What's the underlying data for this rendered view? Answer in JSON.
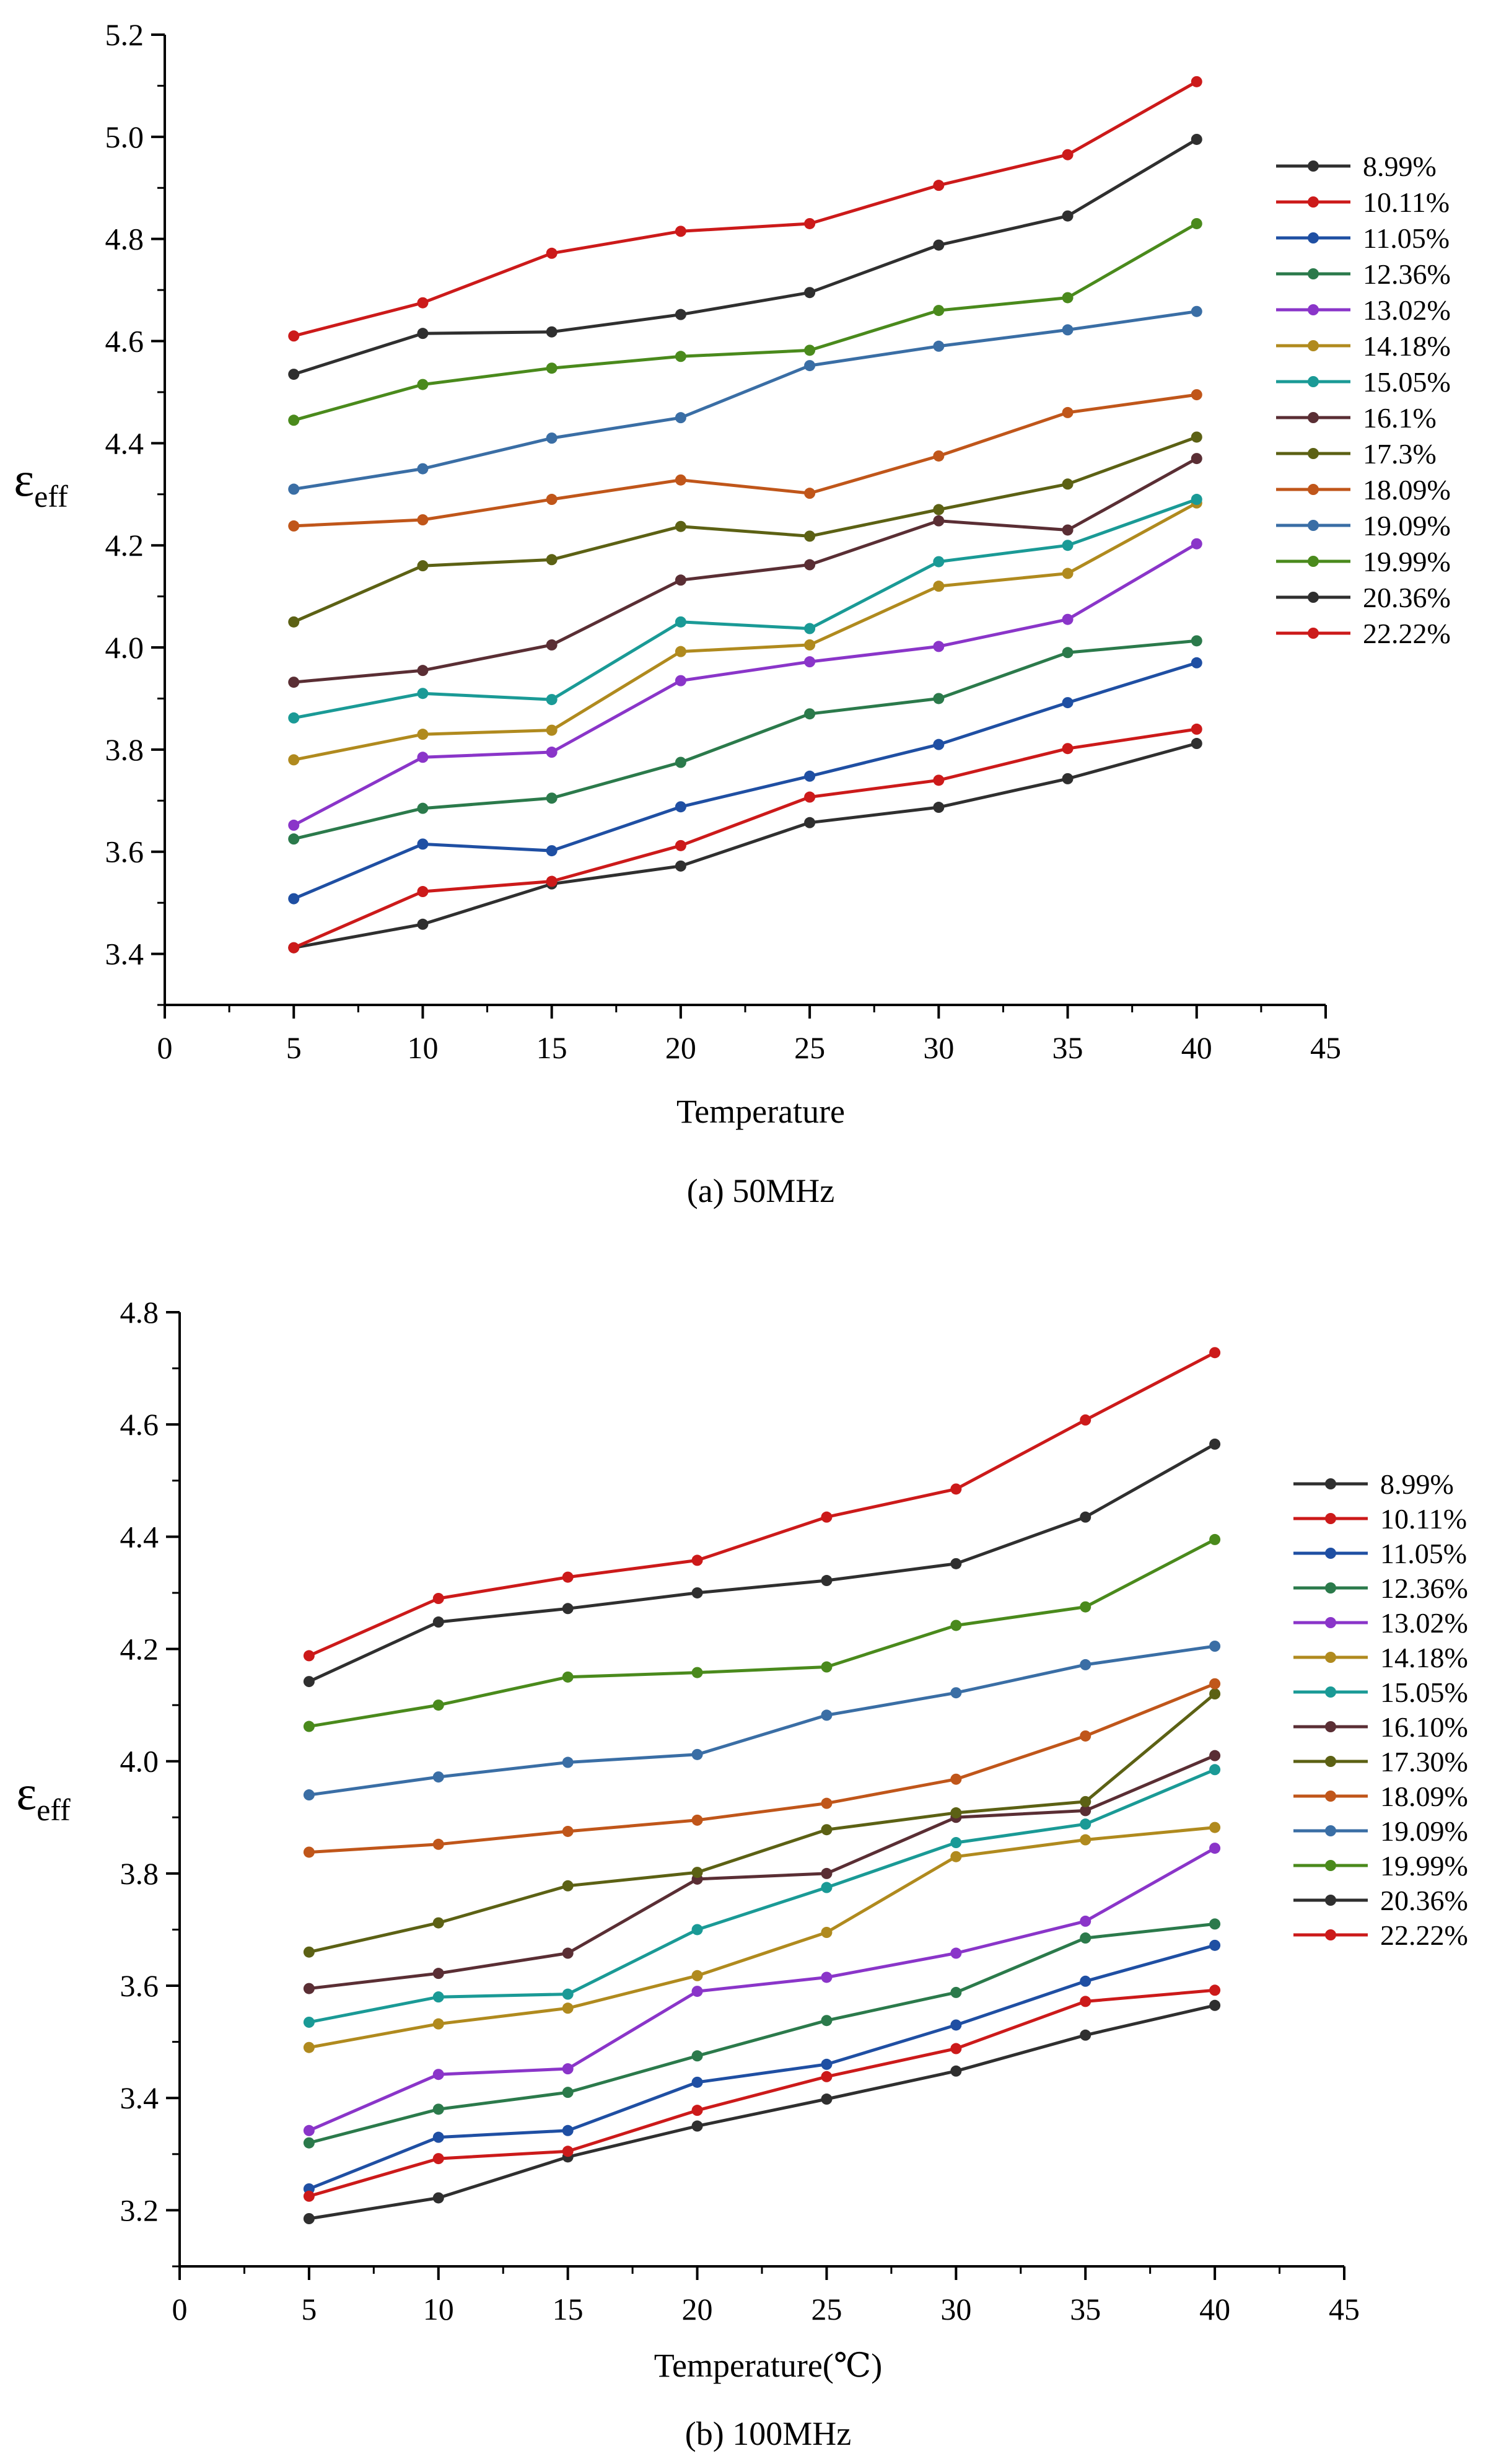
{
  "chart_data": [
    {
      "type": "line",
      "caption": "(a) 50MHz",
      "xlabel": "Temperature",
      "ylabel_main": "ε",
      "ylabel_sub": "eff",
      "xlim": [
        0,
        45
      ],
      "ylim": [
        3.3,
        5.2
      ],
      "xticks": [
        "0",
        "5",
        "10",
        "15",
        "20",
        "25",
        "30",
        "35",
        "40",
        "45"
      ],
      "yticks": [
        "3.4",
        "3.6",
        "3.8",
        "4.0",
        "4.2",
        "4.4",
        "4.6",
        "4.8",
        "5.0",
        "5.2"
      ],
      "x": [
        5,
        10,
        15,
        20,
        25,
        30,
        35,
        40
      ],
      "legend_position": "right",
      "series": [
        {
          "name": "8.99%",
          "color": "#2f2f2f",
          "values": [
            4.535,
            4.615,
            4.618,
            4.652,
            4.695,
            4.788,
            4.845,
            4.995
          ]
        },
        {
          "name": "10.11%",
          "color": "#cc1a1a",
          "values": [
            4.61,
            4.675,
            4.772,
            4.815,
            4.83,
            4.905,
            4.965,
            5.108
          ]
        },
        {
          "name": "11.05%",
          "color": "#1f4fa3",
          "values": [
            3.508,
            3.615,
            3.602,
            3.688,
            3.748,
            3.81,
            3.892,
            3.97
          ]
        },
        {
          "name": "12.36%",
          "color": "#2b7a4b",
          "values": [
            3.625,
            3.685,
            3.705,
            3.775,
            3.87,
            3.9,
            3.99,
            4.013
          ]
        },
        {
          "name": "13.02%",
          "color": "#8a35c9",
          "values": [
            3.652,
            3.785,
            3.795,
            3.935,
            3.972,
            4.002,
            4.055,
            4.203
          ]
        },
        {
          "name": "14.18%",
          "color": "#b08a1e",
          "values": [
            3.78,
            3.83,
            3.838,
            3.992,
            4.005,
            4.12,
            4.145,
            4.283
          ]
        },
        {
          "name": "15.05%",
          "color": "#1a9a96",
          "values": [
            3.862,
            3.91,
            3.898,
            4.05,
            4.037,
            4.168,
            4.2,
            4.29
          ]
        },
        {
          "name": "16.1%",
          "color": "#5a2e34",
          "values": [
            3.932,
            3.955,
            4.005,
            4.132,
            4.162,
            4.248,
            4.23,
            4.37
          ]
        },
        {
          "name": "17.3%",
          "color": "#5c6114",
          "values": [
            4.05,
            4.16,
            4.172,
            4.237,
            4.218,
            4.27,
            4.32,
            4.412
          ]
        },
        {
          "name": "18.09%",
          "color": "#c0561a",
          "values": [
            4.238,
            4.25,
            4.29,
            4.328,
            4.302,
            4.375,
            4.46,
            4.495
          ]
        },
        {
          "name": "19.09%",
          "color": "#3a6ea5",
          "values": [
            4.31,
            4.35,
            4.41,
            4.45,
            4.552,
            4.59,
            4.622,
            4.658
          ]
        },
        {
          "name": "19.99%",
          "color": "#4a8a1c",
          "values": [
            4.445,
            4.515,
            4.547,
            4.57,
            4.582,
            4.66,
            4.685,
            4.83
          ]
        },
        {
          "name": "20.36%",
          "color": "#2f2f2f",
          "values": [
            3.412,
            3.458,
            3.537,
            3.572,
            3.657,
            3.687,
            3.743,
            3.812
          ]
        },
        {
          "name": "22.22%",
          "color": "#cc1a1a",
          "values": [
            3.412,
            3.522,
            3.542,
            3.612,
            3.707,
            3.74,
            3.802,
            3.84
          ]
        }
      ]
    },
    {
      "type": "line",
      "caption": "(b) 100MHz",
      "xlabel": "Temperature(℃)",
      "ylabel_main": "ε",
      "ylabel_sub": "eff",
      "xlim": [
        0,
        45
      ],
      "ylim": [
        3.1,
        4.8
      ],
      "xticks": [
        "0",
        "5",
        "10",
        "15",
        "20",
        "25",
        "30",
        "35",
        "40",
        "45"
      ],
      "yticks": [
        "3.2",
        "3.4",
        "3.6",
        "3.8",
        "4.0",
        "4.2",
        "4.4",
        "4.6",
        "4.8"
      ],
      "x": [
        5,
        10,
        15,
        20,
        25,
        30,
        35,
        40
      ],
      "legend_position": "right",
      "series": [
        {
          "name": "8.99%",
          "color": "#2f2f2f",
          "values": [
            4.142,
            4.248,
            4.272,
            4.3,
            4.322,
            4.352,
            4.435,
            4.565
          ]
        },
        {
          "name": "10.11%",
          "color": "#cc1a1a",
          "values": [
            4.188,
            4.29,
            4.328,
            4.358,
            4.435,
            4.485,
            4.608,
            4.728
          ]
        },
        {
          "name": "11.05%",
          "color": "#1f4fa3",
          "values": [
            3.238,
            3.33,
            3.342,
            3.428,
            3.46,
            3.53,
            3.608,
            3.672
          ]
        },
        {
          "name": "12.36%",
          "color": "#2b7a4b",
          "values": [
            3.32,
            3.38,
            3.41,
            3.475,
            3.538,
            3.588,
            3.685,
            3.71
          ]
        },
        {
          "name": "13.02%",
          "color": "#8a35c9",
          "values": [
            3.342,
            3.442,
            3.452,
            3.59,
            3.615,
            3.658,
            3.715,
            3.845
          ]
        },
        {
          "name": "14.18%",
          "color": "#b08a1e",
          "values": [
            3.49,
            3.532,
            3.56,
            3.618,
            3.695,
            3.83,
            3.86,
            3.882
          ]
        },
        {
          "name": "15.05%",
          "color": "#1a9a96",
          "values": [
            3.535,
            3.58,
            3.585,
            3.7,
            3.775,
            3.855,
            3.888,
            3.985
          ]
        },
        {
          "name": "16.10%",
          "color": "#5a2e34",
          "values": [
            3.595,
            3.622,
            3.658,
            3.79,
            3.8,
            3.9,
            3.912,
            4.01
          ]
        },
        {
          "name": "17.30%",
          "color": "#5c6114",
          "values": [
            3.66,
            3.712,
            3.778,
            3.802,
            3.878,
            3.908,
            3.928,
            4.12
          ]
        },
        {
          "name": "18.09%",
          "color": "#c0561a",
          "values": [
            3.838,
            3.852,
            3.875,
            3.895,
            3.925,
            3.968,
            4.045,
            4.138
          ]
        },
        {
          "name": "19.09%",
          "color": "#3a6ea5",
          "values": [
            3.94,
            3.972,
            3.998,
            4.012,
            4.082,
            4.122,
            4.172,
            4.205
          ]
        },
        {
          "name": "19.99%",
          "color": "#4a8a1c",
          "values": [
            4.062,
            4.1,
            4.15,
            4.158,
            4.168,
            4.242,
            4.275,
            4.395
          ]
        },
        {
          "name": "20.36%",
          "color": "#2f2f2f",
          "values": [
            3.185,
            3.222,
            3.295,
            3.35,
            3.398,
            3.448,
            3.512,
            3.565
          ]
        },
        {
          "name": "22.22%",
          "color": "#cc1a1a",
          "values": [
            3.225,
            3.292,
            3.305,
            3.378,
            3.438,
            3.488,
            3.572,
            3.592
          ]
        }
      ]
    }
  ]
}
